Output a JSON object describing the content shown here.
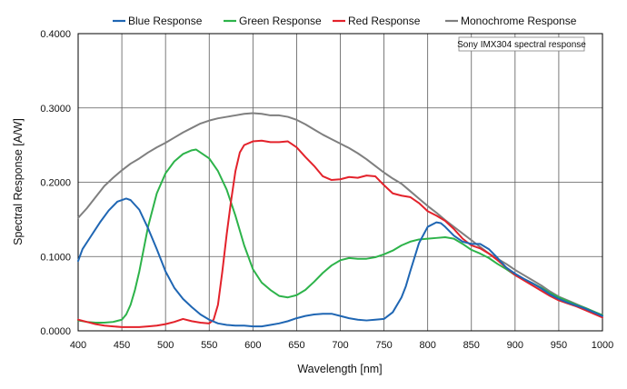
{
  "chart_data": {
    "type": "line",
    "title": "",
    "xlabel": "Wavelength [nm]",
    "ylabel": "Spectral Response [A/W]",
    "xlim": [
      400,
      1000
    ],
    "ylim": [
      0,
      0.4
    ],
    "x_ticks": [
      400,
      450,
      500,
      550,
      600,
      650,
      700,
      750,
      800,
      850,
      900,
      950,
      1000
    ],
    "x_tick_labels": [
      "400",
      "450",
      "500",
      "550",
      "600",
      "650",
      "700",
      "750",
      "800",
      "850",
      "900",
      "950",
      "1000"
    ],
    "y_ticks": [
      0,
      0.1,
      0.2,
      0.3,
      0.4
    ],
    "y_tick_labels": [
      "0.0000",
      "0.1000",
      "0.2000",
      "0.3000",
      "0.4000"
    ],
    "grid": true,
    "legend_position": "top",
    "annotation": "Sony IMX304 spectral response",
    "series": [
      {
        "name": "Blue Response",
        "color": "#1f66b3",
        "x": [
          400,
          405,
          415,
          425,
          435,
          445,
          455,
          460,
          470,
          480,
          490,
          500,
          510,
          520,
          530,
          540,
          550,
          560,
          570,
          580,
          590,
          600,
          610,
          620,
          630,
          640,
          650,
          660,
          670,
          680,
          690,
          700,
          710,
          720,
          730,
          740,
          750,
          760,
          770,
          775,
          780,
          790,
          800,
          810,
          815,
          820,
          830,
          840,
          850,
          860,
          870,
          880,
          890,
          900,
          910,
          920,
          930,
          940,
          950,
          960,
          970,
          980,
          990,
          1000
        ],
        "y": [
          0.094,
          0.11,
          0.128,
          0.146,
          0.162,
          0.174,
          0.178,
          0.176,
          0.163,
          0.138,
          0.11,
          0.08,
          0.058,
          0.043,
          0.032,
          0.022,
          0.015,
          0.01,
          0.008,
          0.007,
          0.007,
          0.006,
          0.006,
          0.008,
          0.01,
          0.013,
          0.017,
          0.02,
          0.022,
          0.023,
          0.023,
          0.02,
          0.017,
          0.015,
          0.014,
          0.015,
          0.016,
          0.025,
          0.045,
          0.06,
          0.08,
          0.118,
          0.14,
          0.146,
          0.145,
          0.14,
          0.128,
          0.12,
          0.117,
          0.117,
          0.11,
          0.098,
          0.085,
          0.077,
          0.07,
          0.064,
          0.057,
          0.049,
          0.043,
          0.038,
          0.034,
          0.03,
          0.025,
          0.02
        ]
      },
      {
        "name": "Green Response",
        "color": "#2db34a",
        "x": [
          400,
          410,
          420,
          430,
          440,
          450,
          455,
          460,
          465,
          470,
          475,
          480,
          490,
          500,
          510,
          520,
          530,
          535,
          540,
          550,
          560,
          570,
          580,
          590,
          600,
          610,
          620,
          630,
          640,
          650,
          660,
          670,
          680,
          690,
          700,
          710,
          720,
          730,
          740,
          750,
          760,
          770,
          780,
          790,
          800,
          810,
          820,
          830,
          840,
          850,
          860,
          870,
          880,
          890,
          900,
          910,
          920,
          930,
          940,
          950,
          960,
          970,
          980,
          990,
          1000
        ],
        "y": [
          0.014,
          0.012,
          0.011,
          0.011,
          0.012,
          0.015,
          0.022,
          0.035,
          0.055,
          0.08,
          0.11,
          0.14,
          0.185,
          0.212,
          0.228,
          0.238,
          0.243,
          0.244,
          0.24,
          0.232,
          0.215,
          0.19,
          0.155,
          0.115,
          0.083,
          0.065,
          0.055,
          0.047,
          0.045,
          0.048,
          0.055,
          0.066,
          0.078,
          0.088,
          0.095,
          0.098,
          0.097,
          0.097,
          0.099,
          0.103,
          0.108,
          0.115,
          0.12,
          0.123,
          0.124,
          0.125,
          0.126,
          0.124,
          0.117,
          0.109,
          0.104,
          0.098,
          0.09,
          0.083,
          0.075,
          0.069,
          0.064,
          0.058,
          0.051,
          0.045,
          0.04,
          0.035,
          0.031,
          0.026,
          0.021
        ]
      },
      {
        "name": "Red Response",
        "color": "#e3222b",
        "x": [
          400,
          410,
          420,
          430,
          440,
          450,
          460,
          470,
          480,
          490,
          500,
          510,
          520,
          530,
          540,
          550,
          555,
          560,
          565,
          570,
          575,
          580,
          585,
          590,
          600,
          610,
          620,
          630,
          640,
          650,
          660,
          670,
          680,
          690,
          700,
          710,
          720,
          730,
          740,
          750,
          760,
          770,
          780,
          790,
          800,
          810,
          820,
          830,
          840,
          850,
          860,
          870,
          880,
          890,
          900,
          910,
          920,
          930,
          940,
          950,
          960,
          970,
          980,
          990,
          1000
        ],
        "y": [
          0.015,
          0.012,
          0.009,
          0.007,
          0.006,
          0.005,
          0.005,
          0.005,
          0.006,
          0.007,
          0.009,
          0.012,
          0.016,
          0.013,
          0.011,
          0.01,
          0.015,
          0.035,
          0.08,
          0.13,
          0.175,
          0.215,
          0.24,
          0.25,
          0.255,
          0.256,
          0.254,
          0.254,
          0.255,
          0.247,
          0.234,
          0.222,
          0.208,
          0.203,
          0.204,
          0.207,
          0.206,
          0.209,
          0.208,
          0.196,
          0.185,
          0.182,
          0.18,
          0.172,
          0.161,
          0.155,
          0.148,
          0.137,
          0.124,
          0.115,
          0.111,
          0.104,
          0.095,
          0.085,
          0.075,
          0.068,
          0.061,
          0.054,
          0.047,
          0.041,
          0.037,
          0.033,
          0.028,
          0.023,
          0.018
        ]
      },
      {
        "name": "Monochrome Response",
        "color": "#7f7f7f",
        "x": [
          400,
          410,
          420,
          430,
          440,
          450,
          460,
          470,
          480,
          490,
          500,
          510,
          520,
          530,
          540,
          550,
          560,
          570,
          580,
          590,
          600,
          610,
          620,
          630,
          640,
          650,
          660,
          670,
          680,
          690,
          700,
          710,
          720,
          730,
          740,
          750,
          760,
          770,
          780,
          790,
          800,
          810,
          820,
          830,
          840,
          850,
          860,
          870,
          880,
          890,
          900,
          910,
          920,
          930,
          940,
          950,
          960,
          970,
          980,
          990,
          1000
        ],
        "y": [
          0.152,
          0.165,
          0.18,
          0.195,
          0.206,
          0.216,
          0.225,
          0.232,
          0.24,
          0.247,
          0.253,
          0.26,
          0.267,
          0.273,
          0.279,
          0.283,
          0.286,
          0.288,
          0.29,
          0.292,
          0.293,
          0.292,
          0.29,
          0.29,
          0.288,
          0.284,
          0.278,
          0.271,
          0.264,
          0.258,
          0.252,
          0.246,
          0.239,
          0.231,
          0.222,
          0.213,
          0.205,
          0.198,
          0.188,
          0.178,
          0.168,
          0.159,
          0.149,
          0.14,
          0.131,
          0.122,
          0.113,
          0.104,
          0.097,
          0.09,
          0.082,
          0.075,
          0.068,
          0.061,
          0.053,
          0.046,
          0.041,
          0.036,
          0.031,
          0.026,
          0.021
        ]
      }
    ]
  }
}
